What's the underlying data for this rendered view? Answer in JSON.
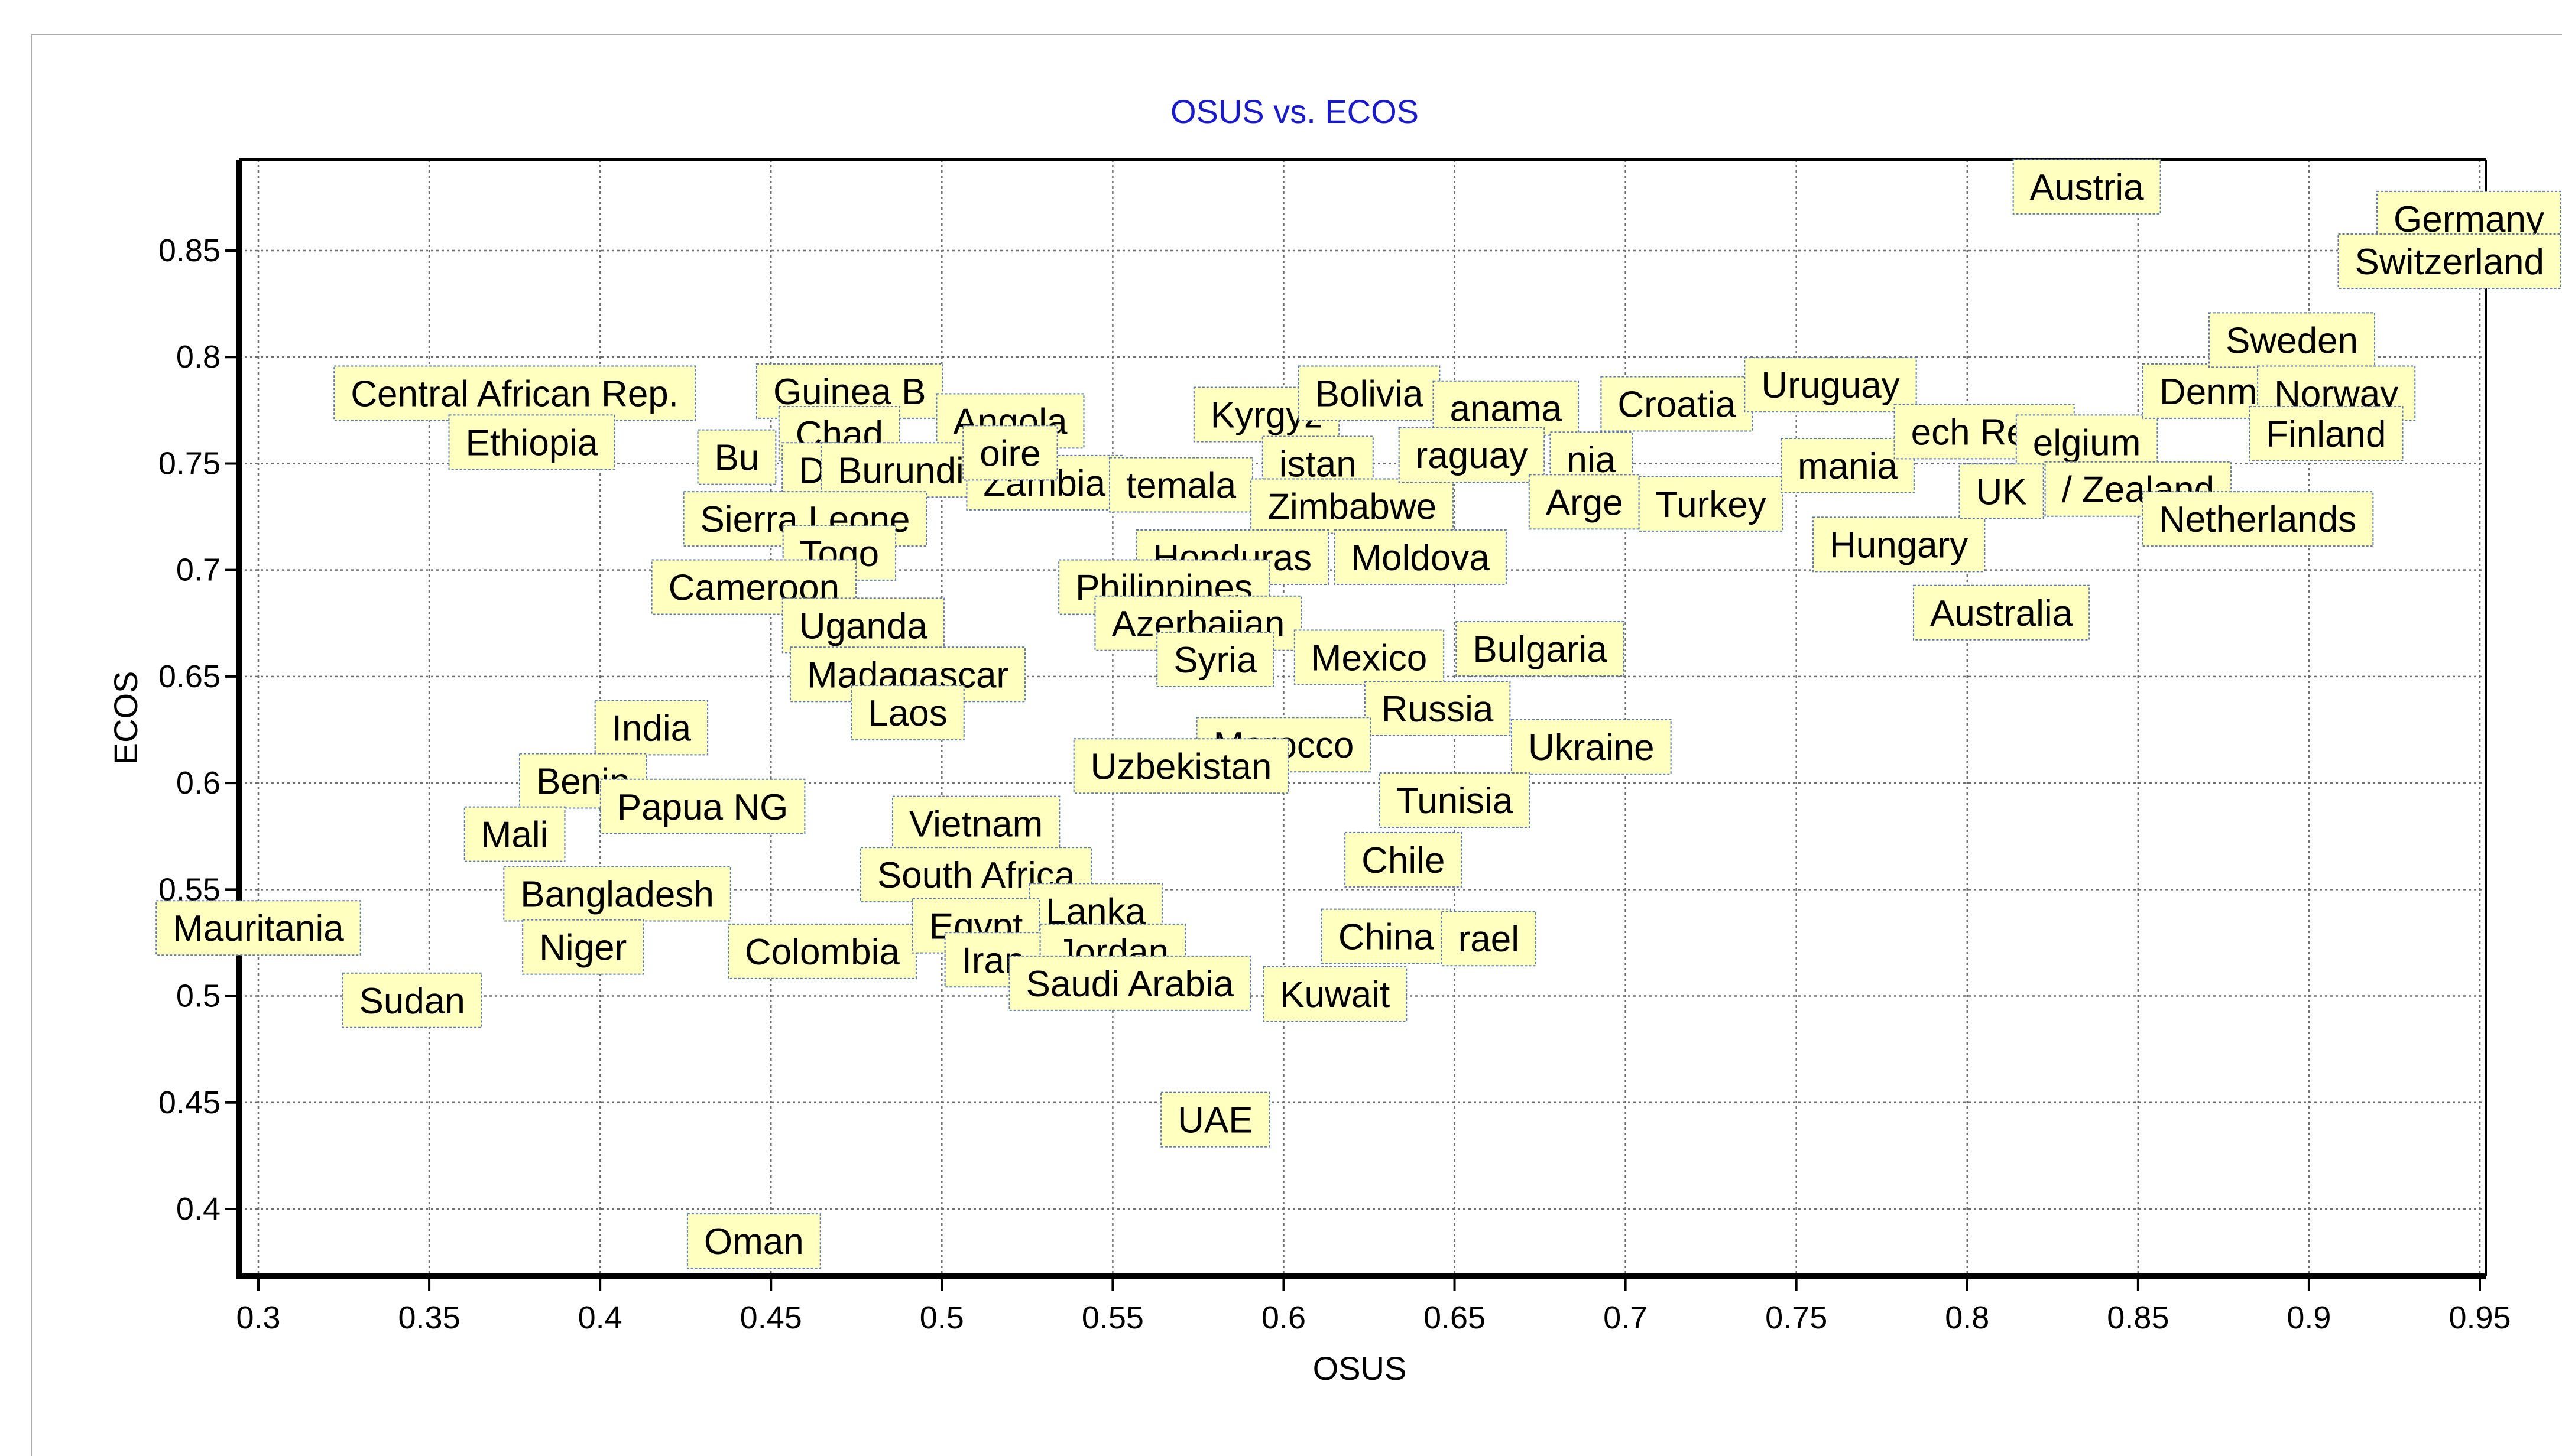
{
  "chart_data": {
    "type": "scatter",
    "title": "OSUS vs. ECOS",
    "xlabel": "OSUS",
    "ylabel": "ECOS",
    "xlim": [
      0.295,
      0.95
    ],
    "ylim": [
      0.37,
      0.89
    ],
    "xticks": [
      0.3,
      0.35,
      0.4,
      0.45,
      0.5,
      0.55,
      0.6,
      0.65,
      0.7,
      0.75,
      0.8,
      0.85,
      0.9,
      0.95
    ],
    "yticks": [
      0.4,
      0.45,
      0.5,
      0.55,
      0.6,
      0.65,
      0.7,
      0.75,
      0.8,
      0.85
    ],
    "xtick_labels": [
      "0.3",
      "0.35",
      "0.4",
      "0.45",
      "0.5",
      "0.55",
      "0.6",
      "0.65",
      "0.7",
      "0.75",
      "0.8",
      "0.85",
      "0.9",
      "0.95"
    ],
    "ytick_labels": [
      "0.4",
      "0.45",
      "0.5",
      "0.55",
      "0.6",
      "0.65",
      "0.7",
      "0.75",
      "0.8",
      "0.85"
    ],
    "grid": true,
    "points": [
      {
        "label": "Central African Rep.",
        "x": 0.375,
        "y": 0.783
      },
      {
        "label": "Ethiopia",
        "x": 0.38,
        "y": 0.76
      },
      {
        "label": "Guinea B",
        "x": 0.473,
        "y": 0.784
      },
      {
        "label": "Angola",
        "x": 0.52,
        "y": 0.77
      },
      {
        "label": "Chad",
        "x": 0.47,
        "y": 0.764
      },
      {
        "label": "Bu",
        "x": 0.44,
        "y": 0.753
      },
      {
        "label": "D",
        "x": 0.462,
        "y": 0.747
      },
      {
        "label": "Burundi",
        "x": 0.488,
        "y": 0.747
      },
      {
        "label": "Zambia",
        "x": 0.53,
        "y": 0.741
      },
      {
        "label": "oire",
        "x": 0.52,
        "y": 0.755
      },
      {
        "label": "Sierra Leone",
        "x": 0.46,
        "y": 0.724
      },
      {
        "label": "Togo",
        "x": 0.47,
        "y": 0.708
      },
      {
        "label": "Cameroon",
        "x": 0.445,
        "y": 0.692
      },
      {
        "label": "Uganda",
        "x": 0.477,
        "y": 0.674
      },
      {
        "label": "Madagascar",
        "x": 0.49,
        "y": 0.651
      },
      {
        "label": "Laos",
        "x": 0.49,
        "y": 0.633
      },
      {
        "label": "India",
        "x": 0.415,
        "y": 0.626
      },
      {
        "label": "Benin",
        "x": 0.395,
        "y": 0.601
      },
      {
        "label": "Papua NG",
        "x": 0.43,
        "y": 0.589
      },
      {
        "label": "Mali",
        "x": 0.375,
        "y": 0.576
      },
      {
        "label": "Bangladesh",
        "x": 0.405,
        "y": 0.548
      },
      {
        "label": "Mauritania",
        "x": 0.3,
        "y": 0.532
      },
      {
        "label": "Niger",
        "x": 0.395,
        "y": 0.523
      },
      {
        "label": "Colombia",
        "x": 0.465,
        "y": 0.521
      },
      {
        "label": "Sudan",
        "x": 0.345,
        "y": 0.498
      },
      {
        "label": "Oman",
        "x": 0.445,
        "y": 0.385
      },
      {
        "label": "Vietnam",
        "x": 0.51,
        "y": 0.581
      },
      {
        "label": "South Africa",
        "x": 0.51,
        "y": 0.557
      },
      {
        "label": "Lanka",
        "x": 0.545,
        "y": 0.54
      },
      {
        "label": "Egypt",
        "x": 0.51,
        "y": 0.533
      },
      {
        "label": "Iran",
        "x": 0.515,
        "y": 0.517
      },
      {
        "label": "Jordan",
        "x": 0.55,
        "y": 0.521
      },
      {
        "label": "Saudi Arabia",
        "x": 0.555,
        "y": 0.506
      },
      {
        "label": "Kyrgyz",
        "x": 0.595,
        "y": 0.773
      },
      {
        "label": "istan",
        "x": 0.61,
        "y": 0.75
      },
      {
        "label": "temala",
        "x": 0.57,
        "y": 0.74
      },
      {
        "label": "Zimbabwe",
        "x": 0.62,
        "y": 0.73
      },
      {
        "label": "Honduras",
        "x": 0.585,
        "y": 0.706
      },
      {
        "label": "Philippines",
        "x": 0.565,
        "y": 0.692
      },
      {
        "label": "Azerbaijan",
        "x": 0.575,
        "y": 0.675
      },
      {
        "label": "Syria",
        "x": 0.58,
        "y": 0.658
      },
      {
        "label": "Bolivia",
        "x": 0.625,
        "y": 0.783
      },
      {
        "label": "Moldova",
        "x": 0.64,
        "y": 0.706
      },
      {
        "label": "Mexico",
        "x": 0.625,
        "y": 0.659
      },
      {
        "label": "Bulgaria",
        "x": 0.675,
        "y": 0.663
      },
      {
        "label": "Russia",
        "x": 0.645,
        "y": 0.635
      },
      {
        "label": "Morocco",
        "x": 0.6,
        "y": 0.618
      },
      {
        "label": "Ukraine",
        "x": 0.69,
        "y": 0.617
      },
      {
        "label": "Uzbekistan",
        "x": 0.57,
        "y": 0.608
      },
      {
        "label": "Tunisia",
        "x": 0.65,
        "y": 0.592
      },
      {
        "label": "Chile",
        "x": 0.635,
        "y": 0.564
      },
      {
        "label": "China",
        "x": 0.63,
        "y": 0.528
      },
      {
        "label": "rael",
        "x": 0.66,
        "y": 0.527
      },
      {
        "label": "Kuwait",
        "x": 0.615,
        "y": 0.501
      },
      {
        "label": "UAE",
        "x": 0.58,
        "y": 0.442
      },
      {
        "label": "anama",
        "x": 0.665,
        "y": 0.776
      },
      {
        "label": "raguay",
        "x": 0.655,
        "y": 0.754
      },
      {
        "label": "nia",
        "x": 0.69,
        "y": 0.752
      },
      {
        "label": "Arge",
        "x": 0.688,
        "y": 0.732
      },
      {
        "label": "Croatia",
        "x": 0.715,
        "y": 0.778
      },
      {
        "label": "Turkey",
        "x": 0.725,
        "y": 0.731
      },
      {
        "label": "Uruguay",
        "x": 0.76,
        "y": 0.787
      },
      {
        "label": "mania",
        "x": 0.765,
        "y": 0.749
      },
      {
        "label": "Hungary",
        "x": 0.78,
        "y": 0.712
      },
      {
        "label": "ech Rep.",
        "x": 0.805,
        "y": 0.765
      },
      {
        "label": "elgium",
        "x": 0.835,
        "y": 0.76
      },
      {
        "label": "UK",
        "x": 0.81,
        "y": 0.737
      },
      {
        "label": "/ Zealand",
        "x": 0.85,
        "y": 0.738
      },
      {
        "label": "Australia",
        "x": 0.81,
        "y": 0.68
      },
      {
        "label": "Austria",
        "x": 0.835,
        "y": 0.88
      },
      {
        "label": "Denmark",
        "x": 0.878,
        "y": 0.784
      },
      {
        "label": "Sweden",
        "x": 0.895,
        "y": 0.808
      },
      {
        "label": "Norway",
        "x": 0.908,
        "y": 0.783
      },
      {
        "label": "Finland",
        "x": 0.905,
        "y": 0.764
      },
      {
        "label": "Netherlands",
        "x": 0.885,
        "y": 0.724
      },
      {
        "label": "Germany",
        "x": 0.95,
        "y": 0.865
      },
      {
        "label": "Switzerland",
        "x": 0.95,
        "y": 0.845
      }
    ]
  }
}
